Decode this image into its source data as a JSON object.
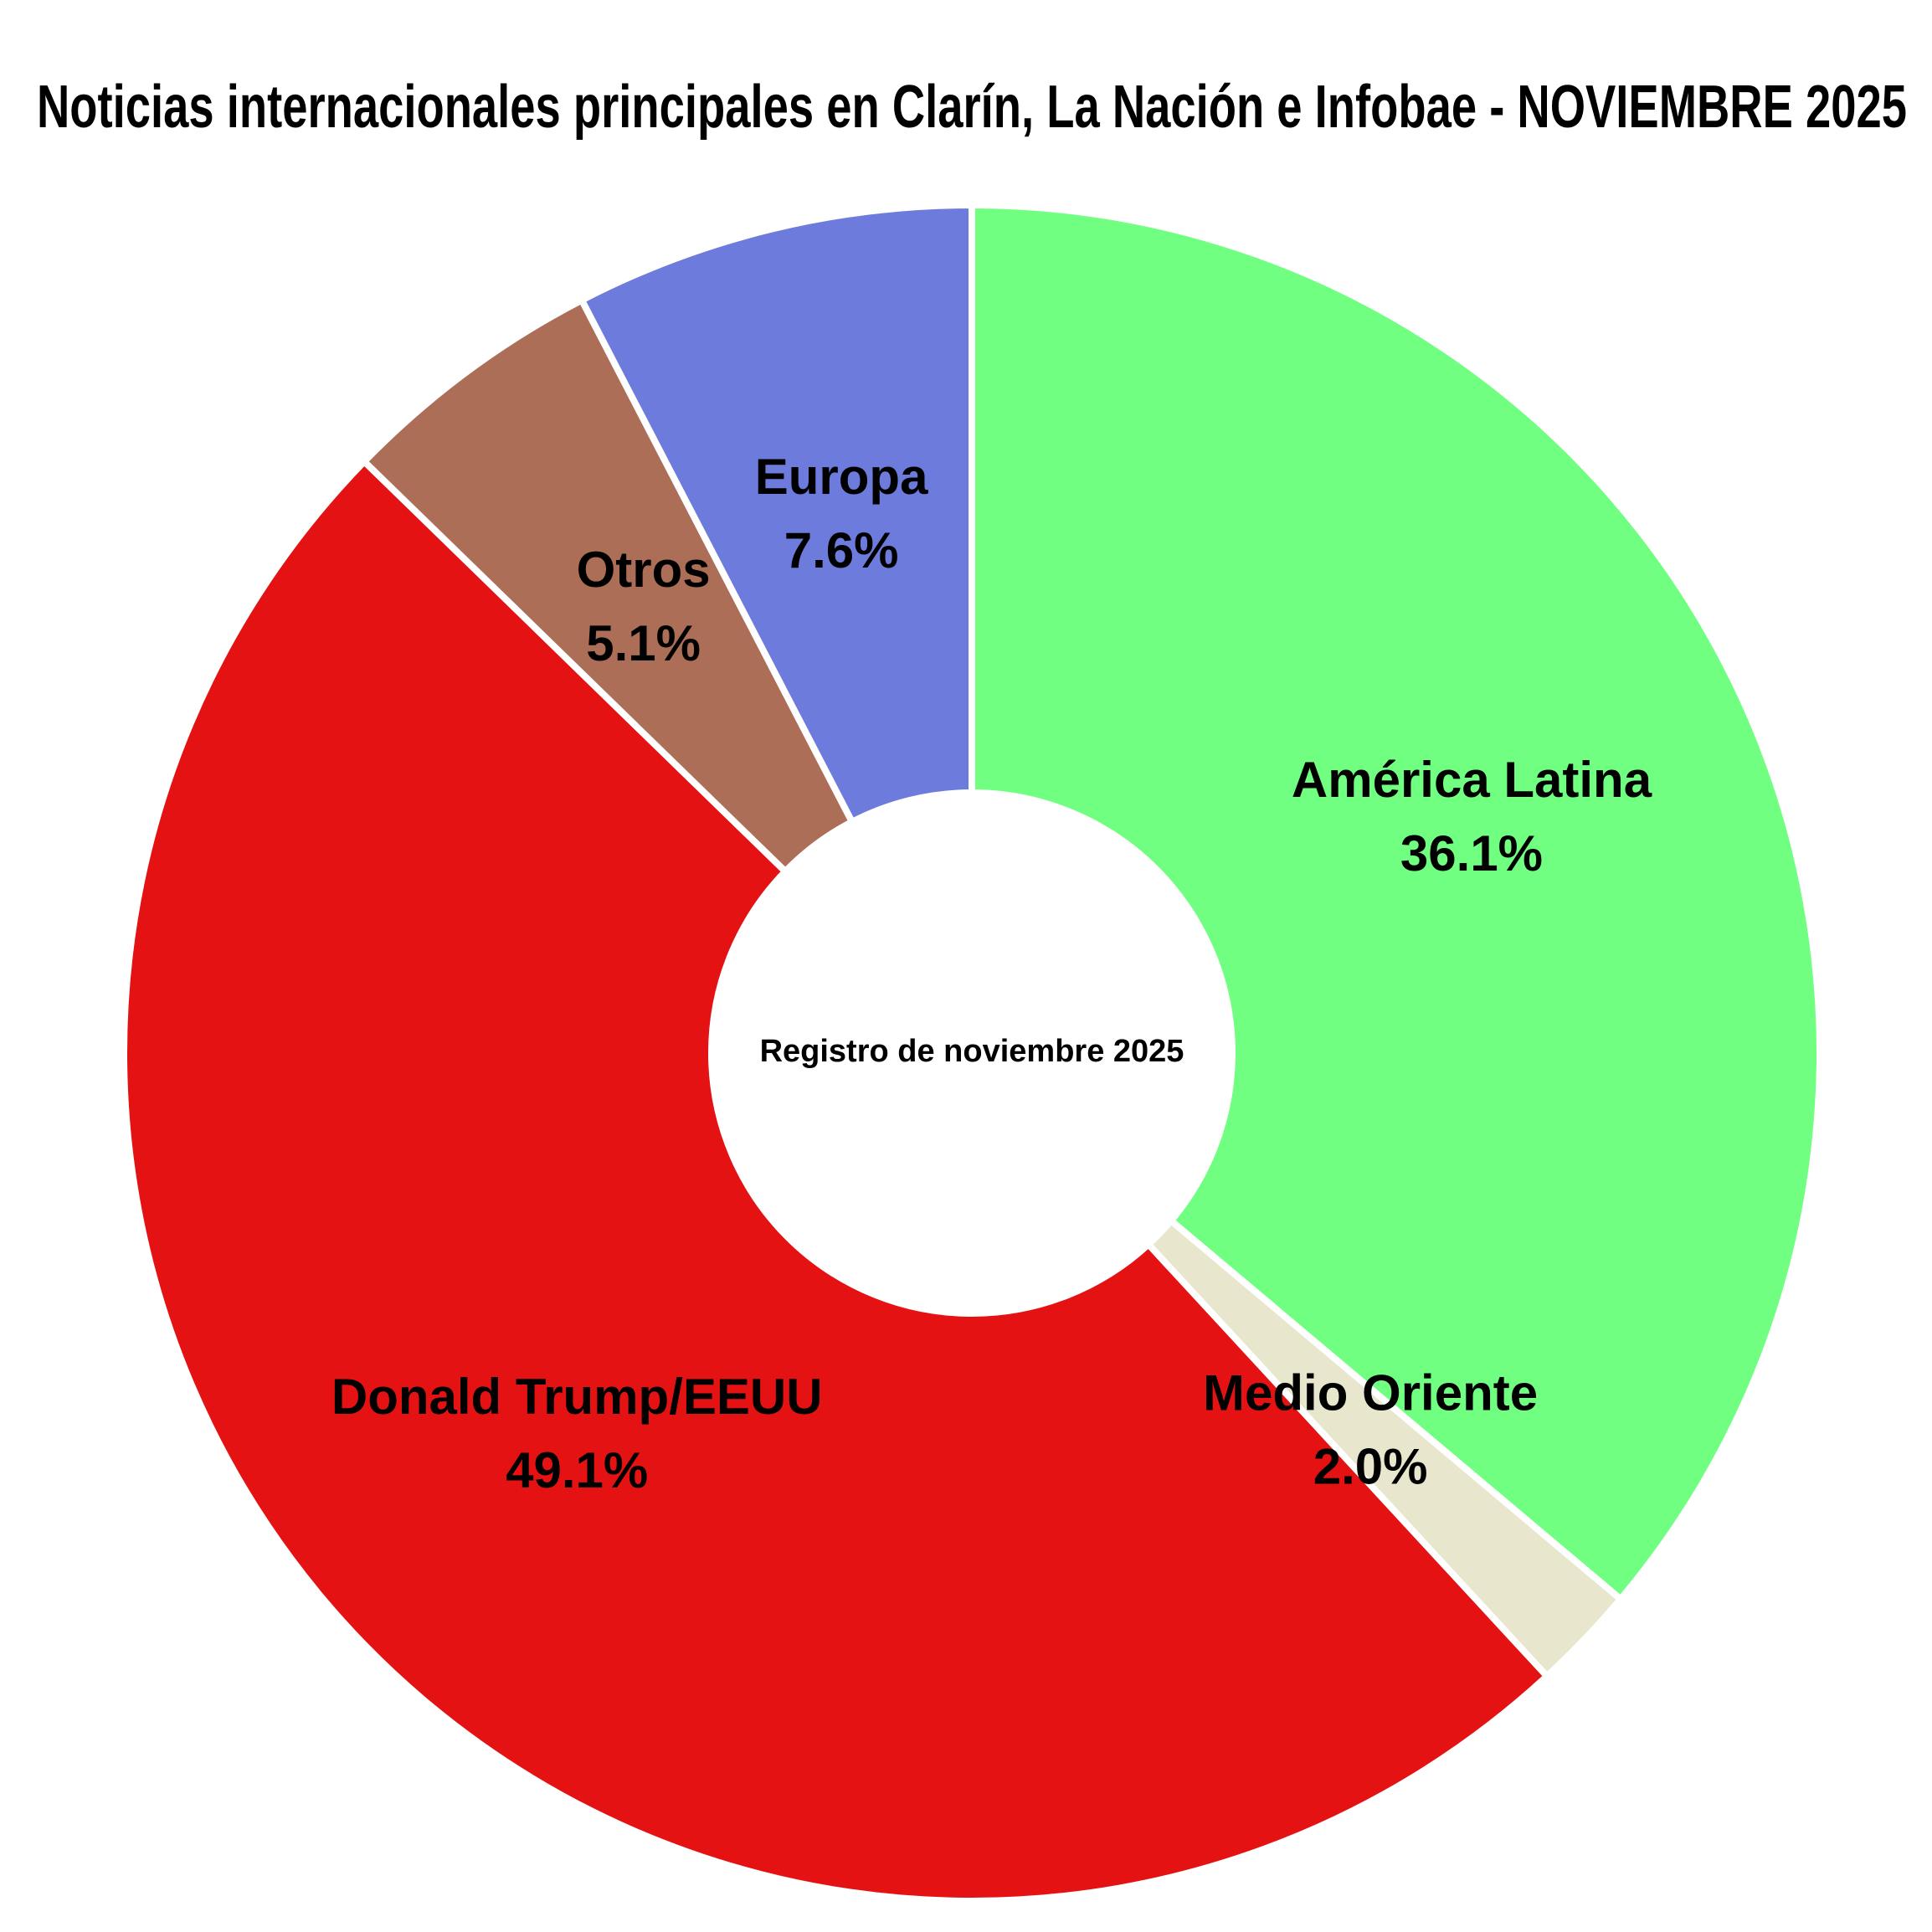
{
  "chart_data": {
    "type": "donut",
    "title": "Noticias internacionales principales en Clarín, La Nación e Infobae - NOVIEMBRE 2025",
    "center_text": "Registro de noviembre 2025",
    "categories": [
      "América Latina",
      "Medio Oriente",
      "Donald Trump/EEUU",
      "Otros",
      "Europa"
    ],
    "values": [
      36.1,
      2.0,
      49.1,
      5.1,
      7.6
    ],
    "value_labels": [
      "36.1%",
      "2.0%",
      "49.1%",
      "5.1%",
      "7.6%"
    ],
    "colors": [
      "#70ff80",
      "#e8e6cc",
      "#e41212",
      "#ad6e57",
      "#6d7bdc"
    ]
  }
}
